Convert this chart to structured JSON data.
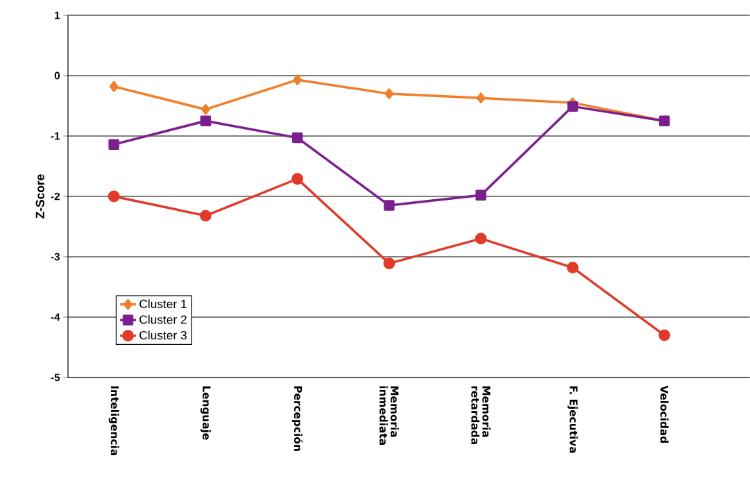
{
  "chart_data": {
    "type": "line",
    "ylabel": "Z-Score",
    "categories": [
      "Inteligencia",
      "Lenguaje",
      "Percepción",
      "Memoria inmediata",
      "Memoria retardada",
      "F. Ejecutiva",
      "Velocidad"
    ],
    "series": [
      {
        "name": "Cluster 1",
        "color": "#f07f2a",
        "marker": "diamond",
        "values": [
          -0.18,
          -0.56,
          -0.07,
          -0.3,
          -0.37,
          -0.45,
          -0.75
        ]
      },
      {
        "name": "Cluster 2",
        "color": "#7b1f8e",
        "marker": "square",
        "values": [
          -1.14,
          -0.75,
          -1.03,
          -2.15,
          -1.98,
          -0.51,
          -0.75
        ]
      },
      {
        "name": "Cluster 3",
        "color": "#e03a2b",
        "marker": "circle",
        "values": [
          -2.0,
          -2.32,
          -1.71,
          -3.11,
          -2.7,
          -3.18,
          -4.3
        ]
      }
    ],
    "ylim": [
      -5,
      1
    ],
    "yticks": [
      -5,
      -4,
      -3,
      -2,
      -1,
      0,
      1
    ],
    "grid": "y",
    "legend": "bottom left",
    "line_style": "solid"
  }
}
